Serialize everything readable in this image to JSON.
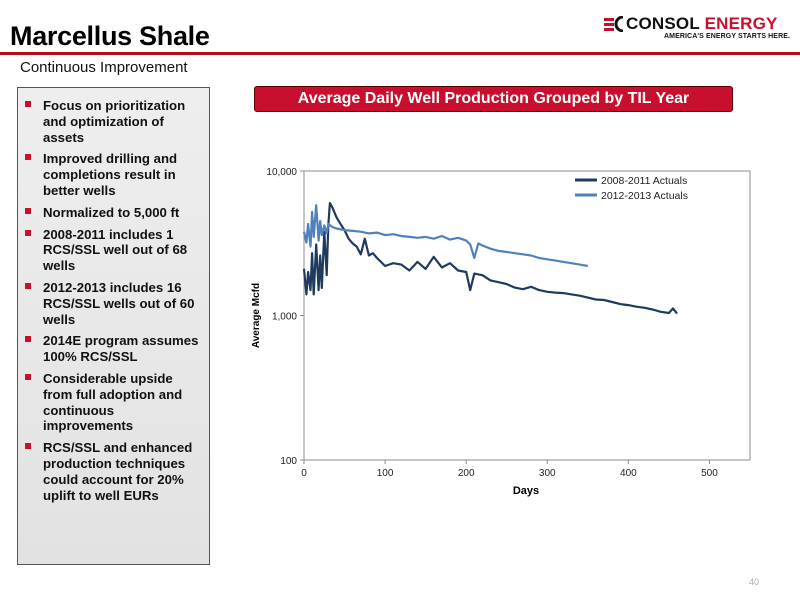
{
  "slide": {
    "title": "Marcellus Shale",
    "subtitle": "Continuous Improvement",
    "page_number": "40"
  },
  "logo": {
    "name_part1": "CONSOL",
    "name_part2": "ENERGY",
    "tagline": "AMERICA'S ENERGY STARTS HERE.",
    "brand_red": "#c8102e"
  },
  "bullets": [
    "Focus on prioritization and optimization of assets",
    "Improved drilling and completions result in better wells",
    "Normalized to 5,000 ft",
    "2008-2011 includes 1 RCS/SSL well out of 68 wells",
    "2012-2013 includes 16 RCS/SSL wells out of 60 wells",
    "2014E program assumes 100% RCS/SSL",
    "Considerable upside from full adoption and continuous improvements",
    "RCS/SSL and enhanced production techniques could account for 20% uplift to well EURs"
  ],
  "chart_data": {
    "type": "line",
    "title": "Average Daily Well Production Grouped by TIL Year",
    "xlabel": "Days",
    "ylabel": "Average Mcfd",
    "xlim": [
      0,
      550
    ],
    "x_ticks": [
      "0",
      "100",
      "200",
      "300",
      "400",
      "500"
    ],
    "ylim": [
      100,
      10000
    ],
    "y_scale": "log",
    "y_ticks": [
      "100",
      "1,000",
      "10,000"
    ],
    "grid": false,
    "legend_position": "top-right",
    "series": [
      {
        "name": "2008-2011 Actuals",
        "color": "#1f3a5f",
        "x": [
          0,
          3,
          5,
          8,
          10,
          12,
          15,
          18,
          20,
          22,
          25,
          28,
          30,
          32,
          35,
          40,
          45,
          50,
          55,
          60,
          65,
          70,
          75,
          80,
          85,
          90,
          95,
          100,
          110,
          120,
          130,
          140,
          150,
          160,
          170,
          180,
          190,
          200,
          205,
          210,
          220,
          230,
          240,
          250,
          260,
          270,
          280,
          290,
          300,
          310,
          320,
          330,
          340,
          350,
          360,
          370,
          380,
          390,
          400,
          410,
          420,
          430,
          440,
          450,
          455,
          460
        ],
        "y": [
          2100,
          1400,
          2000,
          1500,
          2700,
          1400,
          3100,
          1500,
          2600,
          1550,
          3800,
          1900,
          4200,
          6000,
          5600,
          4800,
          4300,
          3900,
          3400,
          3150,
          3000,
          2650,
          3400,
          2600,
          2700,
          2500,
          2350,
          2200,
          2300,
          2250,
          2050,
          2350,
          2100,
          2550,
          2150,
          2300,
          2050,
          2000,
          1500,
          1950,
          1900,
          1750,
          1700,
          1650,
          1560,
          1520,
          1580,
          1500,
          1460,
          1440,
          1430,
          1400,
          1370,
          1330,
          1290,
          1280,
          1240,
          1200,
          1180,
          1150,
          1130,
          1100,
          1060,
          1040,
          1120,
          1030
        ]
      },
      {
        "name": "2012-2013 Actuals",
        "color": "#4f81bd",
        "x": [
          0,
          3,
          5,
          8,
          10,
          12,
          15,
          18,
          20,
          22,
          25,
          28,
          30,
          35,
          40,
          50,
          60,
          70,
          80,
          90,
          100,
          110,
          120,
          130,
          140,
          150,
          160,
          170,
          180,
          190,
          200,
          205,
          210,
          215,
          220,
          230,
          240,
          250,
          260,
          270,
          280,
          290,
          300,
          310,
          320,
          330,
          340,
          350
        ],
        "y": [
          3800,
          3200,
          4300,
          3000,
          5200,
          3500,
          5800,
          3300,
          4500,
          3600,
          4200,
          3700,
          4300,
          4100,
          4000,
          3900,
          3850,
          3800,
          3700,
          3750,
          3600,
          3650,
          3550,
          3500,
          3450,
          3500,
          3400,
          3550,
          3350,
          3450,
          3300,
          3100,
          2500,
          3150,
          3050,
          2900,
          2800,
          2750,
          2700,
          2650,
          2600,
          2500,
          2450,
          2400,
          2350,
          2300,
          2250,
          2200
        ]
      }
    ]
  }
}
